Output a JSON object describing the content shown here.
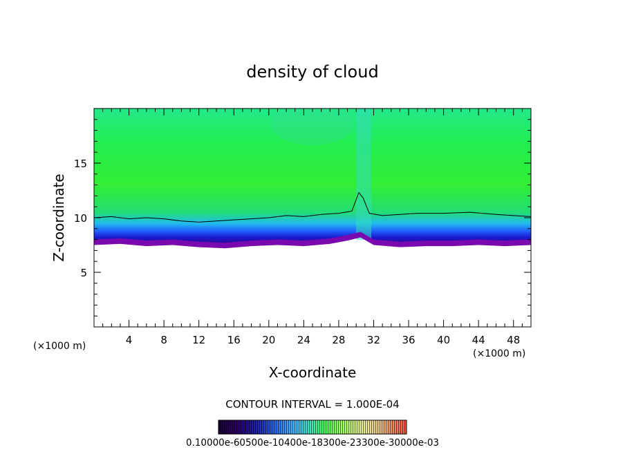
{
  "chart_data": {
    "type": "heatmap",
    "title": "density of cloud",
    "xlabel": "X-coordinate",
    "ylabel": "Z-coordinate",
    "x_unit_left": "(×1000 m)",
    "x_unit_right": "(×1000 m)",
    "xlim": [
      0,
      50
    ],
    "ylim": [
      0,
      20
    ],
    "x_ticks": [
      4,
      8,
      12,
      16,
      20,
      24,
      28,
      32,
      36,
      40,
      44,
      48
    ],
    "y_ticks": [
      5,
      10,
      15
    ],
    "contour_interval_text": "CONTOUR INTERVAL = 1.000E-04",
    "colorbar": {
      "labels_text": "0.10000e-05 ... 0.30000e-03",
      "labels_raw": "0.10000e-60500e-10400e-18300e-23300e-30000e-03",
      "colors": [
        "#1a0033",
        "#2a0066",
        "#1f1fa8",
        "#2e6be6",
        "#4fb3ff",
        "#44e0c8",
        "#4cff66",
        "#a6ff66",
        "#e6f09a",
        "#f0c890",
        "#e88a6a",
        "#ff5a3c"
      ]
    },
    "cloud_base_profile": {
      "x": [
        0,
        3,
        6,
        9,
        12,
        15,
        18,
        21,
        24,
        27,
        29,
        30.5,
        32,
        35,
        38,
        41,
        44,
        47,
        50
      ],
      "z": [
        7.6,
        7.7,
        7.5,
        7.6,
        7.4,
        7.3,
        7.5,
        7.6,
        7.5,
        7.7,
        8.0,
        8.3,
        7.6,
        7.4,
        7.5,
        7.5,
        7.6,
        7.5,
        7.6
      ]
    },
    "contour_1e-04": {
      "x": [
        0,
        2,
        4,
        6,
        8,
        10,
        12,
        14,
        16,
        18,
        20,
        22,
        24,
        26,
        28,
        29.5,
        30.3,
        30.8,
        31.5,
        33,
        35,
        37,
        40,
        43,
        46,
        48,
        50
      ],
      "z": [
        10.0,
        10.1,
        9.9,
        10.0,
        9.9,
        9.7,
        9.6,
        9.7,
        9.8,
        9.9,
        10.0,
        10.2,
        10.1,
        10.3,
        10.4,
        10.6,
        12.3,
        11.8,
        10.4,
        10.2,
        10.3,
        10.4,
        10.4,
        10.5,
        10.3,
        10.2,
        10.1
      ]
    }
  }
}
